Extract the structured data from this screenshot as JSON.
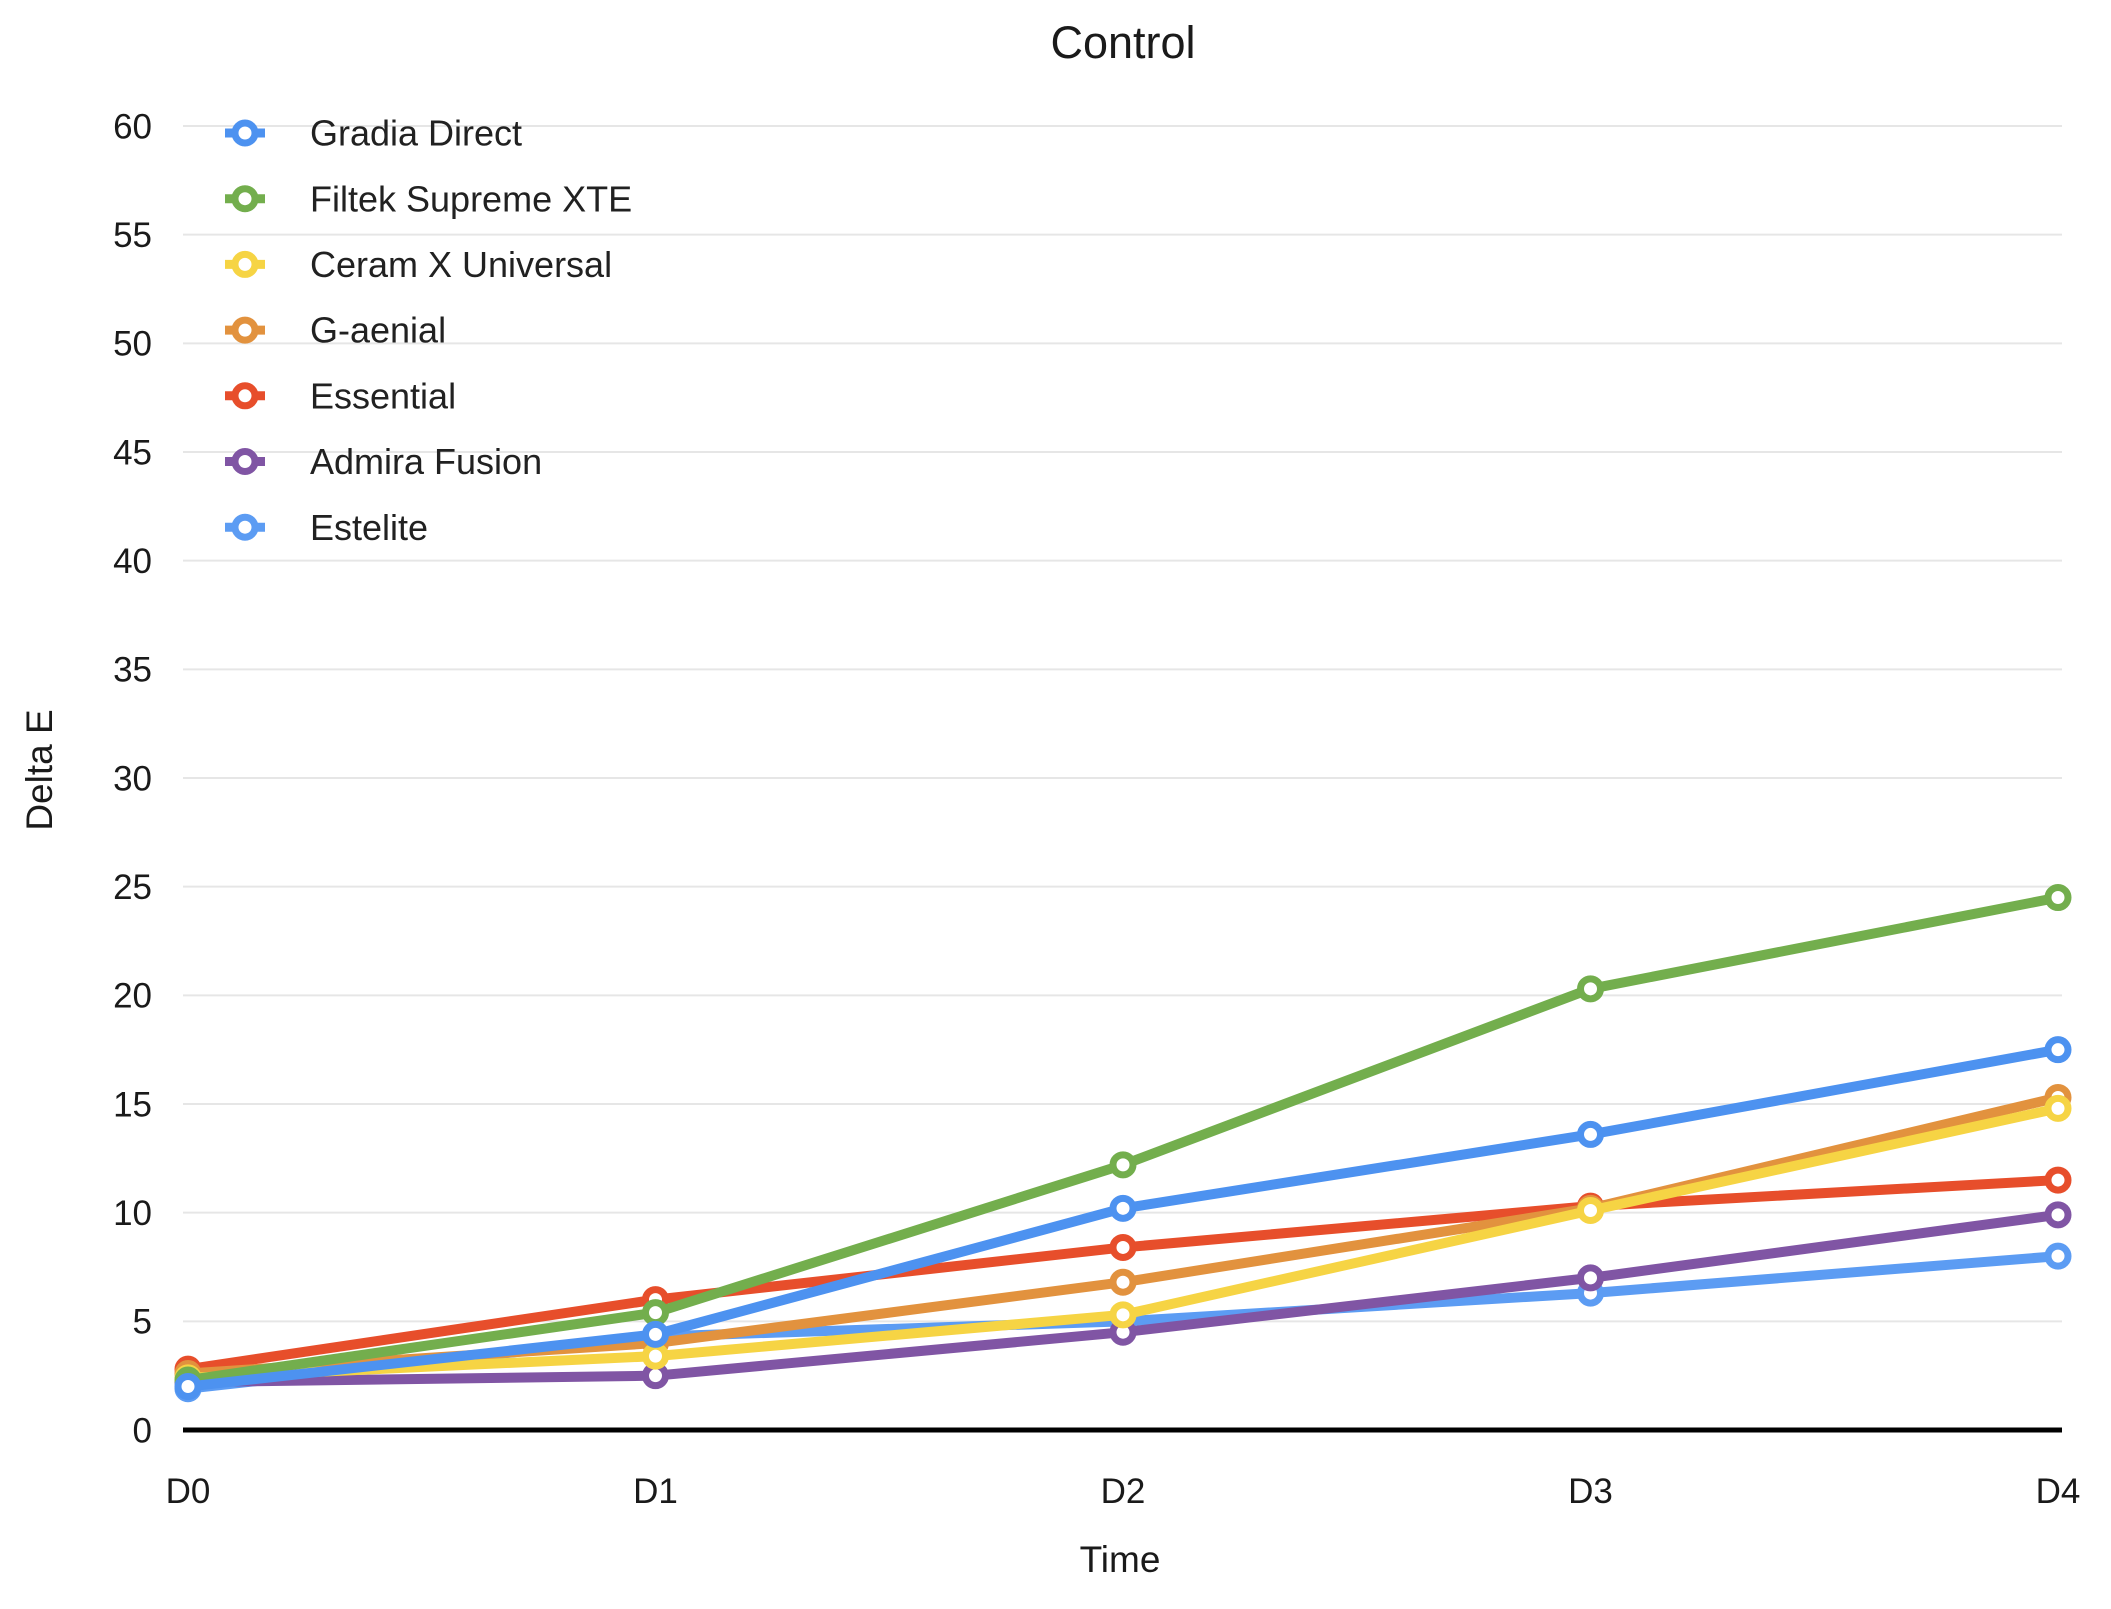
{
  "chart_data": {
    "type": "line",
    "title": "Control",
    "xlabel": "Time",
    "ylabel": "Delta E",
    "categories": [
      "D0",
      "D1",
      "D2",
      "D3",
      "D4"
    ],
    "ylim": [
      0,
      60
    ],
    "ytick_step": 5,
    "grid": true,
    "legend_position": "top-left-inside",
    "marker_style": "open-circle",
    "background_color": "#ffffff",
    "gridline_color": "#e6e6e6",
    "axis_line_color": "#000000",
    "series": [
      {
        "name": "Gradia Direct",
        "color": "#4D92F0",
        "values": [
          2.0,
          4.4,
          10.2,
          13.6,
          17.5
        ]
      },
      {
        "name": "Filtek Supreme XTE",
        "color": "#73AE4D",
        "values": [
          2.3,
          5.4,
          12.2,
          20.3,
          24.5
        ]
      },
      {
        "name": "Ceram X Universal",
        "color": "#F6D444",
        "values": [
          2.4,
          3.4,
          5.3,
          10.1,
          14.8
        ]
      },
      {
        "name": "G-aenial",
        "color": "#E2923E",
        "values": [
          2.6,
          4.0,
          6.8,
          10.2,
          15.3
        ]
      },
      {
        "name": "Essential",
        "color": "#E74E2B",
        "values": [
          2.8,
          6.0,
          8.4,
          10.3,
          11.5
        ]
      },
      {
        "name": "Admira Fusion",
        "color": "#8055A4",
        "values": [
          2.2,
          2.5,
          4.5,
          7.0,
          9.9
        ]
      },
      {
        "name": "Estelite",
        "color": "#5C9CF3",
        "values": [
          1.9,
          4.3,
          5.0,
          6.3,
          8.0
        ]
      }
    ]
  }
}
